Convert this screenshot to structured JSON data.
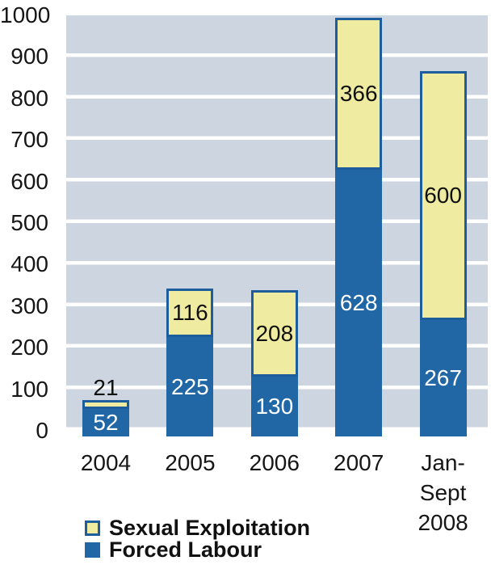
{
  "chart_data": {
    "type": "bar",
    "stacked": true,
    "categories": [
      "2004",
      "2005",
      "2006",
      "2007",
      "Jan-Sept 2008"
    ],
    "category_display": [
      "2004",
      "2005",
      "2006",
      "2007",
      "Jan-\nSept\n2008"
    ],
    "series": [
      {
        "name": "Forced Labour",
        "values": [
          52,
          225,
          130,
          628,
          267
        ],
        "color": "#2166a5",
        "label_color": "#ffffff"
      },
      {
        "name": "Sexual Exploitation",
        "values": [
          21,
          116,
          208,
          366,
          600
        ],
        "color": "#efeca2",
        "label_color": "#111111"
      }
    ],
    "ylim": [
      0,
      1000
    ],
    "yticks": [
      0,
      100,
      200,
      300,
      400,
      500,
      600,
      700,
      800,
      900,
      1000
    ],
    "grid": "horizontal white gridlines over light blue-gray bands",
    "legend_position": "bottom-left",
    "colors": {
      "forced_labour": "#2166a5",
      "sexual_exploitation": "#efeca2",
      "bar_border": "#1d5d9b",
      "plot_band": "#cdd5e1",
      "gridline": "#ffffff",
      "text": "#111111"
    }
  },
  "legend": {
    "items": [
      {
        "label": "Sexual Exploitation",
        "color": "#efeca2",
        "border": "#1d5d9b"
      },
      {
        "label": "Forced Labour",
        "color": "#2166a5",
        "border": "#2166a5"
      }
    ]
  }
}
